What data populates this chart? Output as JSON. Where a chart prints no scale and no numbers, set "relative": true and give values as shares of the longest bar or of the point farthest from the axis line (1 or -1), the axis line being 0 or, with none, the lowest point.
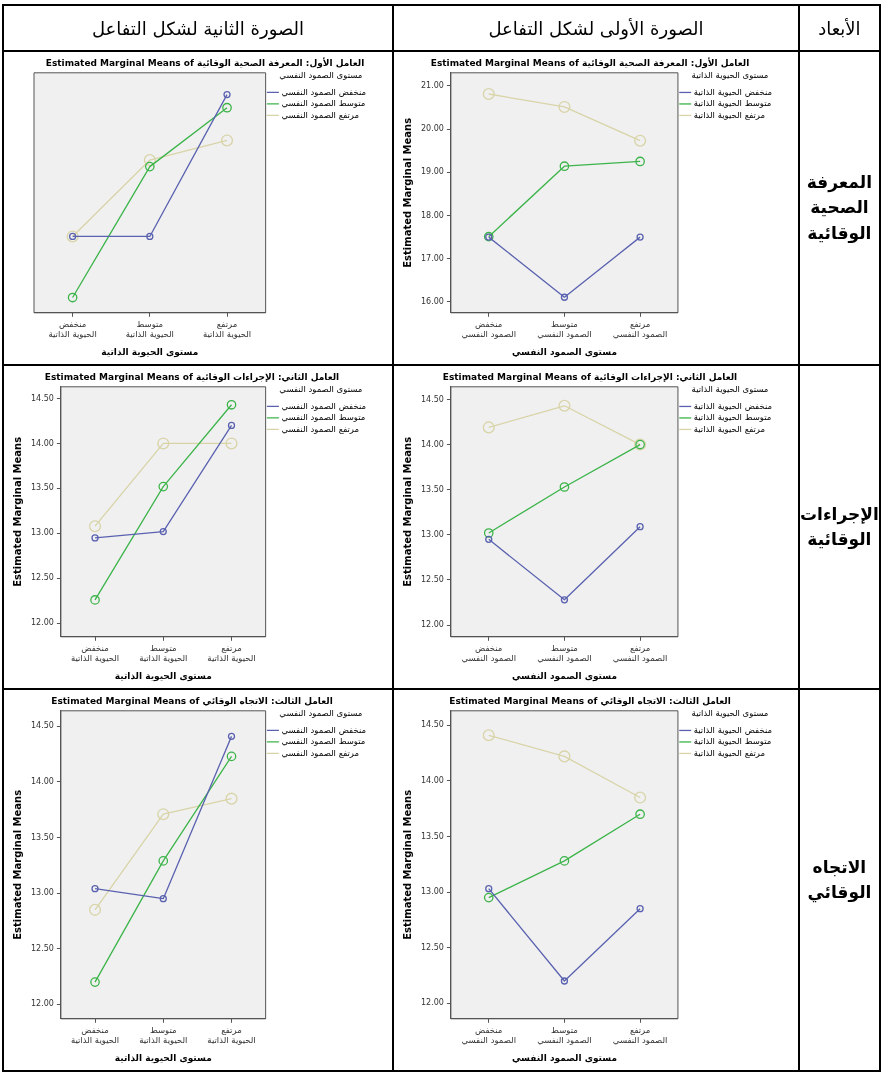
{
  "chart_data": [
    {
      "type": "line",
      "title": "Estimated Marginal Means of العامل الأول: المعرفة الصحية الوقائية",
      "xlabel": "مستوى الحيوية الذاتية",
      "legend_title": "مستوى الصمود النفسي",
      "legend": "right",
      "marker": "circle",
      "relative": true,
      "categories": [
        "منخفض الحيوية الذاتية",
        "متوسط الحيوية الذاتية",
        "مرتفع الحيوية الذاتية"
      ],
      "series": [
        {
          "name": "منخفض الصمود النفسي",
          "color": "#5a62b0",
          "values": [
            0.35,
            0.35,
            1
          ]
        },
        {
          "name": "متوسط الصمود النفسي",
          "color": "#3cb44a",
          "values": [
            0.07,
            0.67,
            0.94
          ]
        },
        {
          "name": "مرتفع الصمود النفسي",
          "color": "#d8d4a8",
          "values": [
            0.35,
            0.7,
            0.79
          ]
        }
      ],
      "annotations": [
        "الصورة الثانية لشكل التفاعل"
      ]
    },
    {
      "type": "line",
      "title": "Estimated Marginal Means of العامل الأول: المعرفة الصحية الوقائية",
      "xlabel": "مستوى الصمود النفسي",
      "ylabel": "Estimated Marginal Means",
      "legend_title": "مستوى الحيوية الذاتية",
      "legend": "right",
      "marker": "circle",
      "categories": [
        "منخفض الصمود النفسي",
        "متوسط الصمود النفسي",
        "مرتفع الصمود النفسي"
      ],
      "ylim": [
        15.75,
        21.3
      ],
      "yticks": [
        {
          "value": 16,
          "label": "16.00"
        },
        {
          "value": 17,
          "label": "17.00"
        },
        {
          "value": 18,
          "label": "18.00"
        },
        {
          "value": 19,
          "label": "19.00"
        },
        {
          "value": 20,
          "label": "20.00"
        },
        {
          "value": 21,
          "label": "21.00"
        }
      ],
      "series": [
        {
          "name": "منخفض الحيوية الذاتية",
          "color": "#5a62b0",
          "values": [
            17.5,
            16.11,
            17.5
          ]
        },
        {
          "name": "متوسط الحيوية الذاتية",
          "color": "#3cb44a",
          "values": [
            17.51,
            19.14,
            19.25
          ]
        },
        {
          "name": "مرتفع الحيوية الذاتية",
          "color": "#d8d4a8",
          "values": [
            20.81,
            20.51,
            19.73
          ]
        }
      ],
      "annotations": [
        "الصورة الأولى لشكل التفاعل",
        "الأبعاد",
        "المعرفة الصحية الوقائية"
      ]
    },
    {
      "type": "line",
      "title": "Estimated Marginal Means of العامل الثاني: الإجراءات الوقائية",
      "xlabel": "مستوى الحيوية الذاتية",
      "ylabel": "Estimated Marginal Means",
      "legend_title": "مستوى الصمود النفسي",
      "legend": "right",
      "marker": "circle",
      "categories": [
        "منخفض الحيوية الذاتية",
        "متوسط الحيوية الذاتية",
        "مرتفع الحيوية الذاتية"
      ],
      "ylim": [
        11.85,
        14.63
      ],
      "yticks": [
        {
          "value": 12,
          "label": "12.00"
        },
        {
          "value": 12.5,
          "label": "12.50"
        },
        {
          "value": 13,
          "label": "13.00"
        },
        {
          "value": 13.5,
          "label": "13.50"
        },
        {
          "value": 14,
          "label": "14.00"
        },
        {
          "value": 14.5,
          "label": "14.50"
        }
      ],
      "series": [
        {
          "name": "منخفض الصمود النفسي",
          "color": "#5a62b0",
          "values": [
            12.95,
            13.02,
            14.2
          ]
        },
        {
          "name": "متوسط الصمود النفسي",
          "color": "#3cb44a",
          "values": [
            12.26,
            13.52,
            14.43
          ]
        },
        {
          "name": "مرتفع الصمود النفسي",
          "color": "#d8d4a8",
          "values": [
            13.08,
            14,
            14
          ]
        }
      ]
    },
    {
      "type": "line",
      "title": "Estimated Marginal Means of العامل الثاني: الإجراءات الوقائية",
      "xlabel": "مستوى الصمود النفسي",
      "ylabel": "Estimated Marginal Means",
      "legend_title": "مستوى الحيوية الذاتية",
      "legend": "right",
      "marker": "circle",
      "categories": [
        "منخفض الصمود النفسي",
        "متوسط الصمود النفسي",
        "مرتفع الصمود النفسي"
      ],
      "ylim": [
        11.87,
        14.64
      ],
      "yticks": [
        {
          "value": 12,
          "label": "12.00"
        },
        {
          "value": 12.5,
          "label": "12.50"
        },
        {
          "value": 13,
          "label": "13.00"
        },
        {
          "value": 13.5,
          "label": "13.50"
        },
        {
          "value": 14,
          "label": "14.00"
        },
        {
          "value": 14.5,
          "label": "14.50"
        }
      ],
      "series": [
        {
          "name": "منخفض الحيوية الذاتية",
          "color": "#5a62b0",
          "values": [
            12.95,
            12.28,
            13.09
          ]
        },
        {
          "name": "متوسط الحيوية الذاتية",
          "color": "#3cb44a",
          "values": [
            13.02,
            13.53,
            14
          ]
        },
        {
          "name": "مرتفع الحيوية الذاتية",
          "color": "#d8d4a8",
          "values": [
            14.19,
            14.43,
            14
          ]
        }
      ],
      "annotations": [
        "الإجراءات الوقائية"
      ]
    },
    {
      "type": "line",
      "title": "Estimated Marginal Means of العامل الثالث: الاتجاه الوقائي",
      "xlabel": "مستوى الحيوية الذاتية",
      "ylabel": "Estimated Marginal Means",
      "legend_title": "مستوى الصمود النفسي",
      "legend": "right",
      "marker": "circle",
      "categories": [
        "منخفض الحيوية الذاتية",
        "متوسط الحيوية الذاتية",
        "مرتفع الحيوية الذاتية"
      ],
      "ylim": [
        11.87,
        14.64
      ],
      "yticks": [
        {
          "value": 12,
          "label": "12.00"
        },
        {
          "value": 12.5,
          "label": "12.50"
        },
        {
          "value": 13,
          "label": "13.00"
        },
        {
          "value": 13.5,
          "label": "13.50"
        },
        {
          "value": 14,
          "label": "14.00"
        },
        {
          "value": 14.5,
          "label": "14.50"
        }
      ],
      "series": [
        {
          "name": "منخفض الصمود النفسي",
          "color": "#5a62b0",
          "values": [
            13.04,
            12.95,
            14.41
          ]
        },
        {
          "name": "متوسط الصمود النفسي",
          "color": "#3cb44a",
          "values": [
            12.2,
            13.29,
            14.23
          ]
        },
        {
          "name": "مرتفع الصمود النفسي",
          "color": "#d8d4a8",
          "values": [
            12.85,
            13.71,
            13.85
          ]
        }
      ]
    },
    {
      "type": "line",
      "title": "Estimated Marginal Means of العامل الثالث: الاتجاه الوقائي",
      "xlabel": "مستوى الصمود النفسي",
      "ylabel": "Estimated Marginal Means",
      "legend_title": "مستوى الحيوية الذاتية",
      "legend": "right",
      "marker": "circle",
      "categories": [
        "منخفض الصمود النفسي",
        "متوسط الصمود النفسي",
        "مرتفع الصمود النفسي"
      ],
      "ylim": [
        11.86,
        14.63
      ],
      "yticks": [
        {
          "value": 12,
          "label": "12.00"
        },
        {
          "value": 12.5,
          "label": "12.50"
        },
        {
          "value": 13,
          "label": "13.00"
        },
        {
          "value": 13.5,
          "label": "13.50"
        },
        {
          "value": 14,
          "label": "14.00"
        },
        {
          "value": 14.5,
          "label": "14.50"
        }
      ],
      "series": [
        {
          "name": "منخفض الحيوية الذاتية",
          "color": "#5a62b0",
          "values": [
            13.03,
            12.2,
            12.85
          ]
        },
        {
          "name": "متوسط الحيوية الذاتية",
          "color": "#3cb44a",
          "values": [
            12.95,
            13.28,
            13.7
          ]
        },
        {
          "name": "مرتفع الحيوية الذاتية",
          "color": "#d8d4a8",
          "values": [
            14.41,
            14.22,
            13.85
          ]
        }
      ],
      "annotations": [
        "الاتجاه الوقائي"
      ]
    }
  ]
}
